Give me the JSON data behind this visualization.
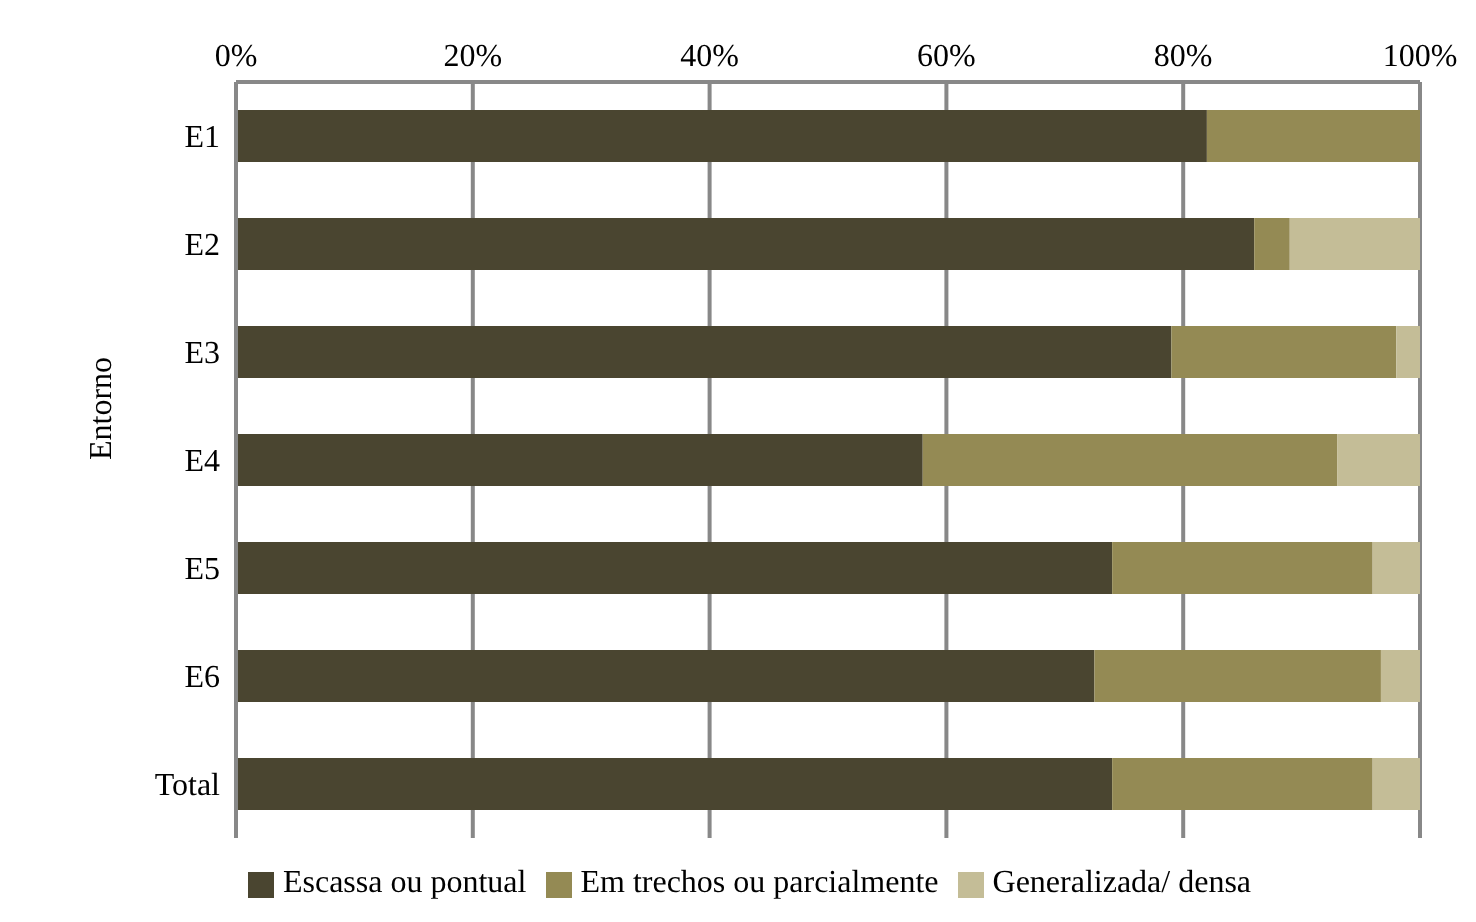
{
  "chart_data": {
    "type": "bar",
    "orientation": "horizontal",
    "stacked": true,
    "ylabel": "Entorno",
    "categories": [
      "E1",
      "E2",
      "E3",
      "E4",
      "E5",
      "E6",
      "Total"
    ],
    "series": [
      {
        "name": "Escassa ou pontual",
        "color": "#4a4530",
        "values": [
          82,
          86,
          79,
          58,
          74,
          72.5,
          74
        ]
      },
      {
        "name": "Em trechos ou parcialmente",
        "color": "#948a54",
        "values": [
          18,
          3,
          19,
          35,
          22,
          24.2,
          22
        ]
      },
      {
        "name": "Generalizada/ densa",
        "color": "#c4bd97",
        "values": [
          0,
          11,
          2,
          7,
          4,
          3.3,
          4
        ]
      }
    ],
    "xlim": [
      0,
      100
    ],
    "xticks": [
      {
        "value": 0,
        "label": "0%"
      },
      {
        "value": 20,
        "label": "20%"
      },
      {
        "value": 40,
        "label": "40%"
      },
      {
        "value": 60,
        "label": "60%"
      },
      {
        "value": 80,
        "label": "80%"
      },
      {
        "value": 100,
        "label": "100%"
      }
    ],
    "grid": "x",
    "legend": "bottom"
  }
}
